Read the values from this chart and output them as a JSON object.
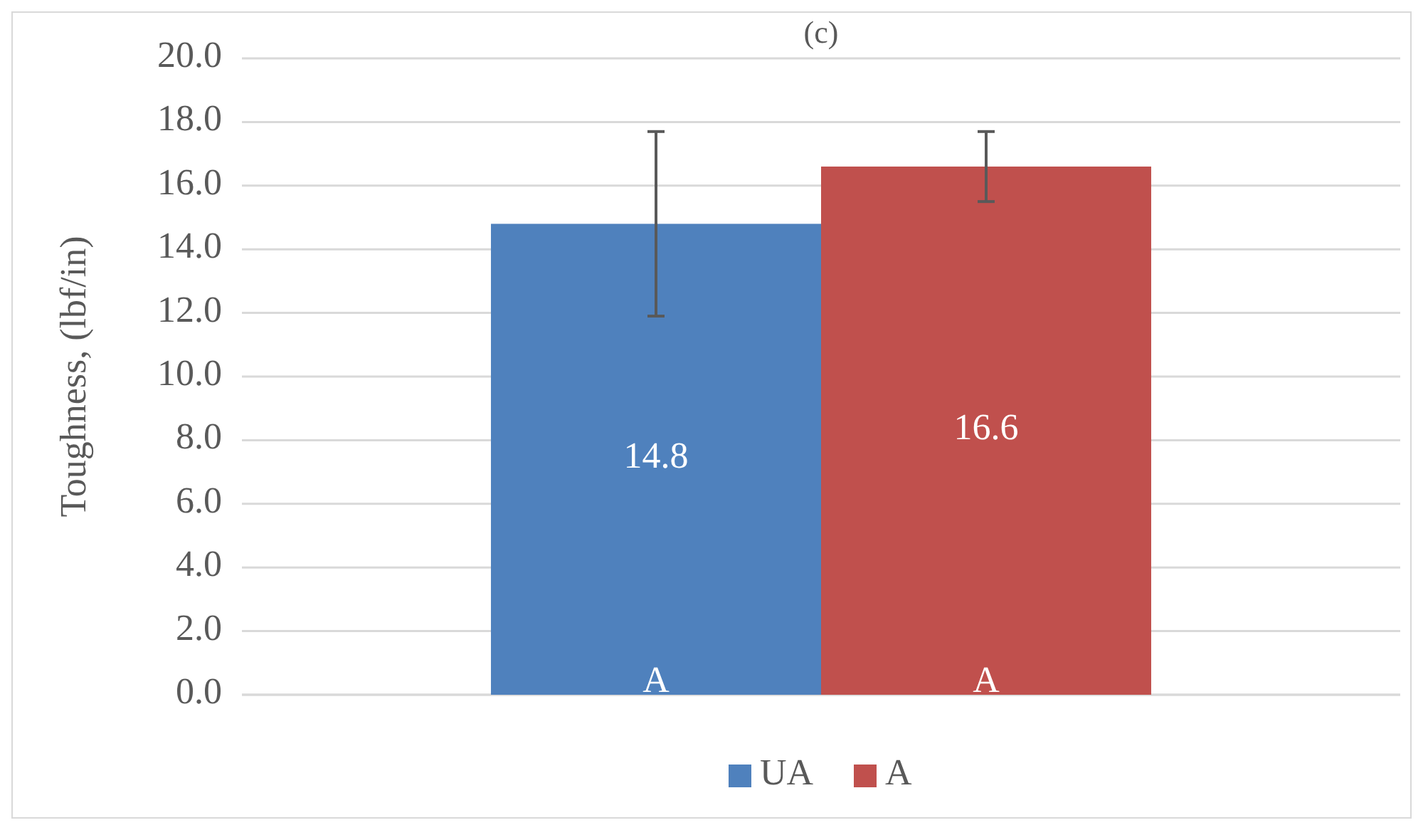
{
  "chart_data": {
    "type": "bar",
    "title": "(c)",
    "ylabel": "Toughness, (lbf/in)",
    "categories": [
      null
    ],
    "series": [
      {
        "name": "UA",
        "color": "#4f81bd",
        "values": [
          14.8
        ],
        "errors": [
          [
            11.9,
            17.7
          ]
        ]
      },
      {
        "name": "A",
        "color": "#c0504d",
        "values": [
          16.6
        ],
        "errors": [
          [
            15.5,
            17.7
          ]
        ]
      }
    ],
    "ylim": [
      0,
      20
    ],
    "yticks": [
      {
        "value": 0,
        "label": "0.0"
      },
      {
        "value": 2,
        "label": "2.0"
      },
      {
        "value": 4,
        "label": "4.0"
      },
      {
        "value": 6,
        "label": "6.0"
      },
      {
        "value": 8,
        "label": "8.0"
      },
      {
        "value": 10,
        "label": "10.0"
      },
      {
        "value": 12,
        "label": "12.0"
      },
      {
        "value": 14,
        "label": "14.0"
      },
      {
        "value": 16,
        "label": "16.0"
      },
      {
        "value": 18,
        "label": "18.0"
      },
      {
        "value": 20,
        "label": "20.0"
      }
    ],
    "grid": "y",
    "legend": "bottom",
    "data_labels": true,
    "annotations": [
      {
        "text": "A",
        "y": 0
      },
      {
        "text": "A",
        "y": 0
      }
    ]
  }
}
